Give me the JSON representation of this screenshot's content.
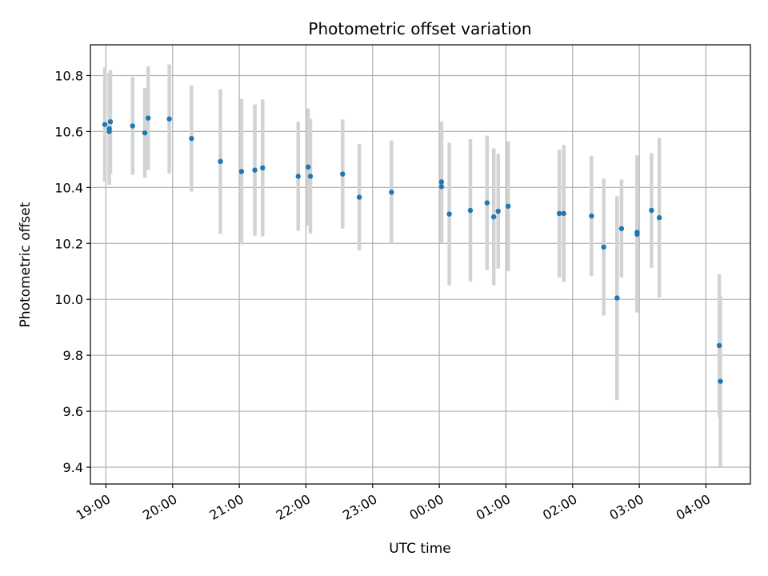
{
  "chart_data": {
    "type": "scatter",
    "title": "Photometric offset variation",
    "xlabel": "UTC time",
    "ylabel": "Photometric offset",
    "xlim": [
      "18:46",
      "04:40"
    ],
    "ylim": [
      9.34,
      10.91
    ],
    "grid": true,
    "xticks": [
      "19:00",
      "20:00",
      "21:00",
      "22:00",
      "23:00",
      "00:00",
      "01:00",
      "02:00",
      "03:00",
      "04:00"
    ],
    "yticks": [
      9.4,
      9.6,
      9.8,
      10.0,
      10.2,
      10.4,
      10.6,
      10.8
    ],
    "colors": {
      "point": "#1f77b4",
      "errorbar": "#d3d3d3",
      "grid": "#b0b0b0"
    },
    "points": [
      {
        "x": "18:59",
        "y": 10.625,
        "err": 0.205
      },
      {
        "x": "19:03",
        "y": 10.61,
        "err": 0.2
      },
      {
        "x": "19:03",
        "y": 10.6,
        "err": 0.19
      },
      {
        "x": "19:04",
        "y": 10.635,
        "err": 0.185
      },
      {
        "x": "19:24",
        "y": 10.62,
        "err": 0.175
      },
      {
        "x": "19:35",
        "y": 10.595,
        "err": 0.16
      },
      {
        "x": "19:38",
        "y": 10.648,
        "err": 0.185
      },
      {
        "x": "19:57",
        "y": 10.645,
        "err": 0.195
      },
      {
        "x": "20:17",
        "y": 10.575,
        "err": 0.19
      },
      {
        "x": "20:43",
        "y": 10.493,
        "err": 0.258
      },
      {
        "x": "21:02",
        "y": 10.457,
        "err": 0.26
      },
      {
        "x": "21:14",
        "y": 10.462,
        "err": 0.235
      },
      {
        "x": "21:21",
        "y": 10.47,
        "err": 0.245
      },
      {
        "x": "21:53",
        "y": 10.44,
        "err": 0.195
      },
      {
        "x": "22:02",
        "y": 10.473,
        "err": 0.21
      },
      {
        "x": "22:04",
        "y": 10.44,
        "err": 0.205
      },
      {
        "x": "22:33",
        "y": 10.448,
        "err": 0.195
      },
      {
        "x": "22:48",
        "y": 10.365,
        "err": 0.19
      },
      {
        "x": "23:17",
        "y": 10.383,
        "err": 0.185
      },
      {
        "x": "00:02",
        "y": 10.42,
        "err": 0.215
      },
      {
        "x": "00:02",
        "y": 10.403,
        "err": 0.2
      },
      {
        "x": "00:09",
        "y": 10.305,
        "err": 0.255
      },
      {
        "x": "00:28",
        "y": 10.318,
        "err": 0.255
      },
      {
        "x": "00:43",
        "y": 10.345,
        "err": 0.24
      },
      {
        "x": "00:49",
        "y": 10.295,
        "err": 0.245
      },
      {
        "x": "00:53",
        "y": 10.315,
        "err": 0.205
      },
      {
        "x": "01:02",
        "y": 10.333,
        "err": 0.232
      },
      {
        "x": "01:48",
        "y": 10.307,
        "err": 0.228
      },
      {
        "x": "01:52",
        "y": 10.307,
        "err": 0.245
      },
      {
        "x": "02:17",
        "y": 10.298,
        "err": 0.215
      },
      {
        "x": "02:28",
        "y": 10.187,
        "err": 0.245
      },
      {
        "x": "02:40",
        "y": 10.005,
        "err": 0.365
      },
      {
        "x": "02:44",
        "y": 10.253,
        "err": 0.175
      },
      {
        "x": "02:58",
        "y": 10.233,
        "err": 0.28
      },
      {
        "x": "02:58",
        "y": 10.24,
        "err": 0.275
      },
      {
        "x": "03:11",
        "y": 10.318,
        "err": 0.205
      },
      {
        "x": "03:18",
        "y": 10.292,
        "err": 0.285
      },
      {
        "x": "04:12",
        "y": 9.835,
        "err": 0.255
      },
      {
        "x": "04:13",
        "y": 9.707,
        "err": 0.305
      }
    ]
  }
}
